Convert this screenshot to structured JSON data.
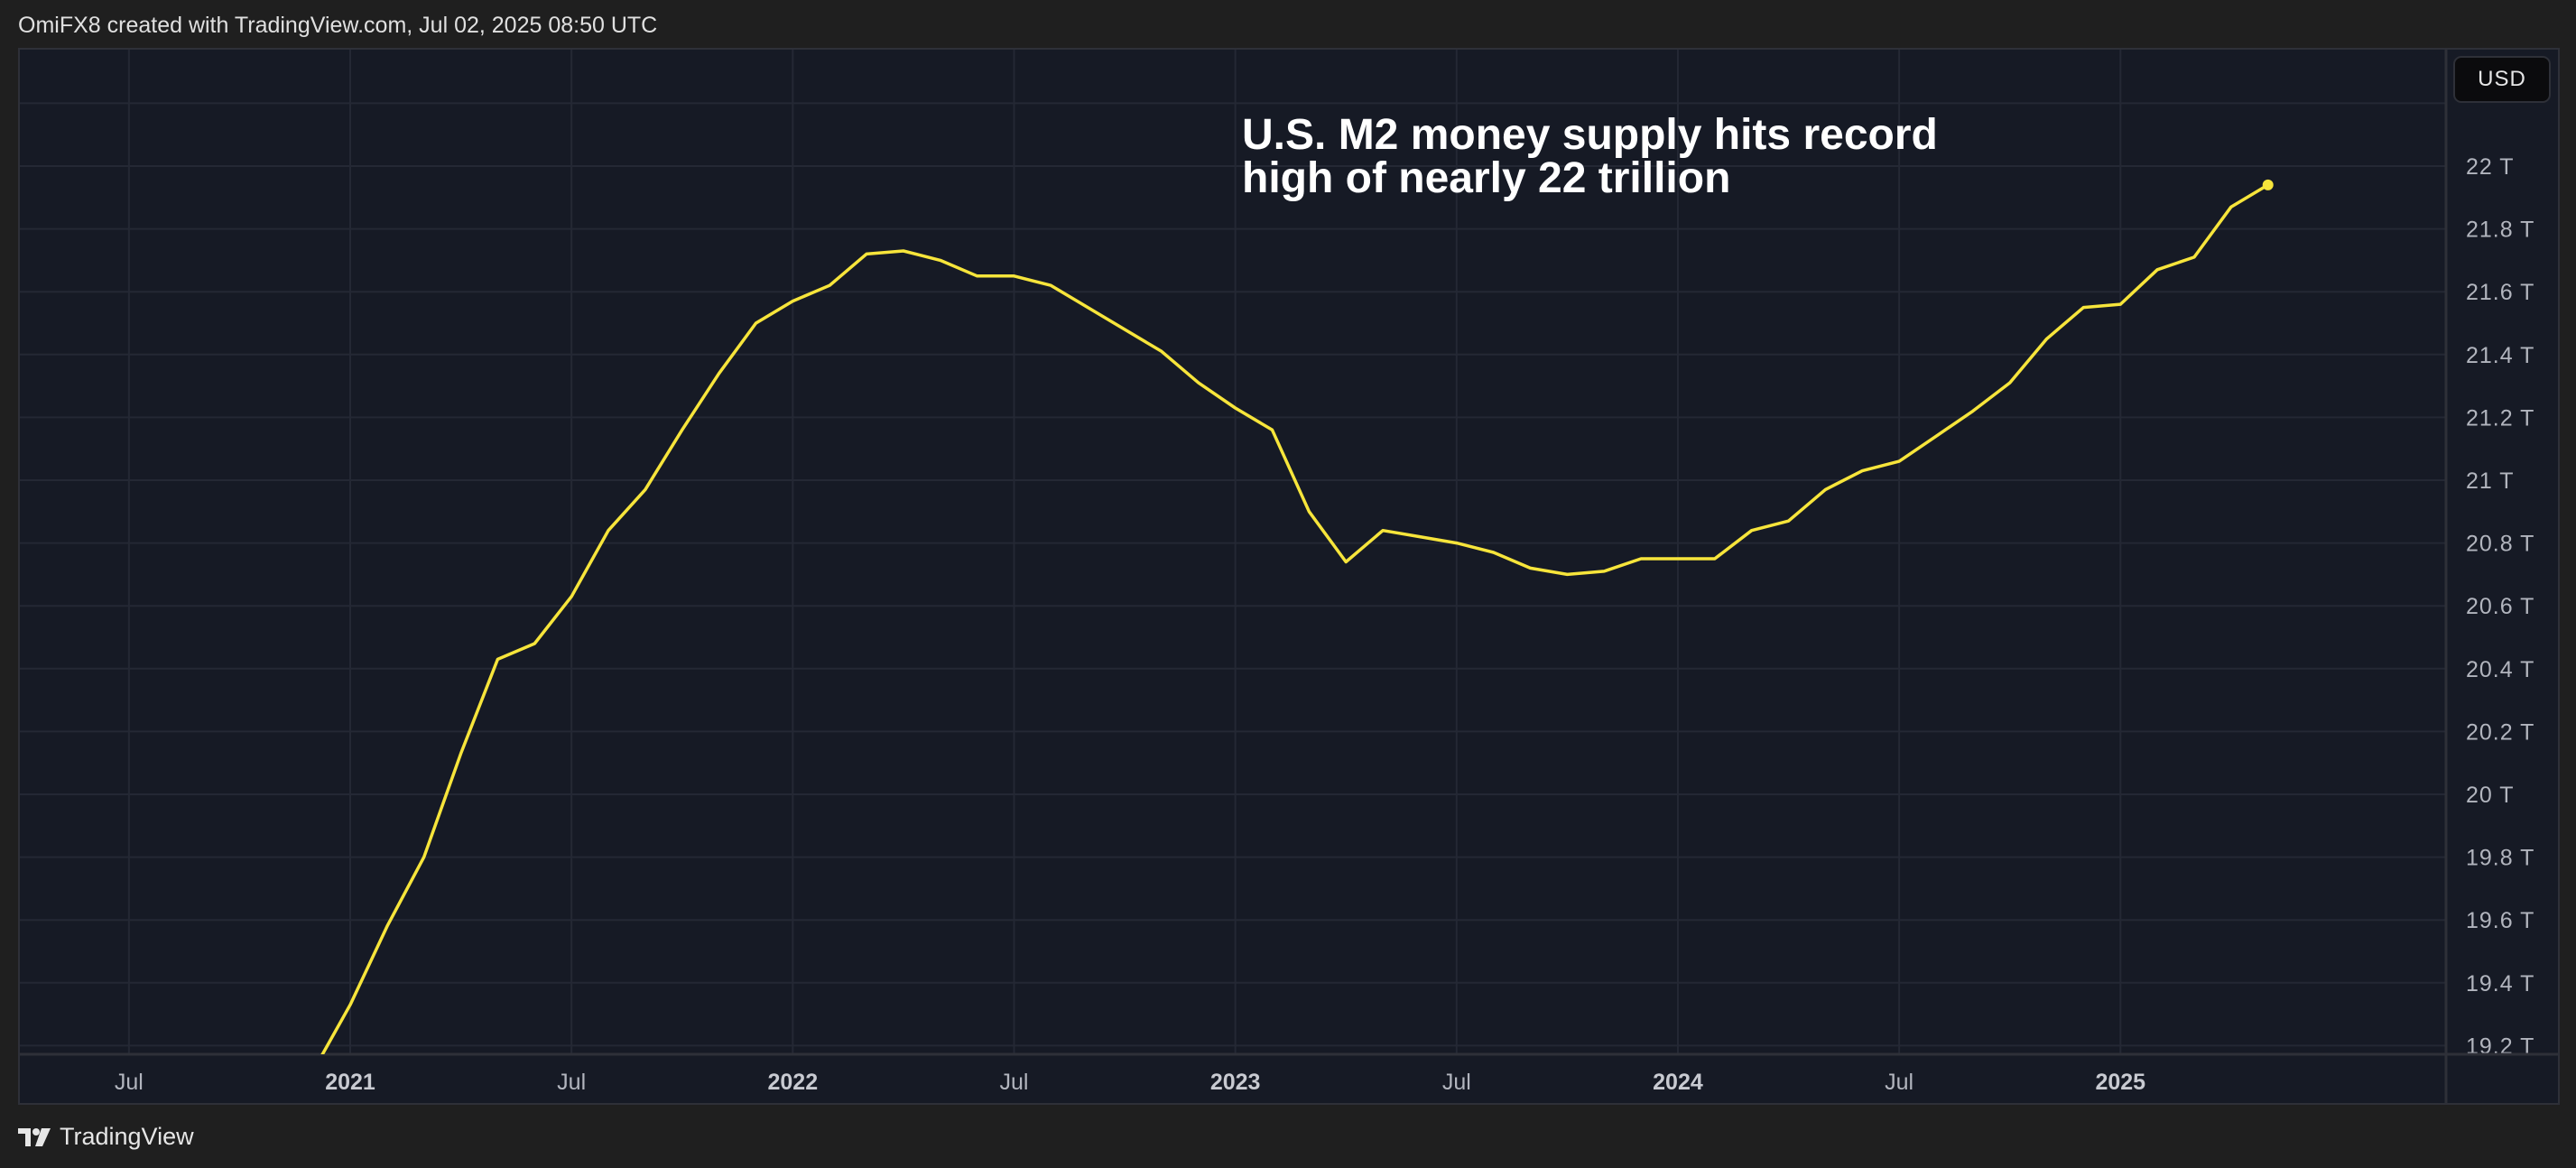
{
  "header": {
    "credit": "OmiFX8 created with TradingView.com, Jul 02, 2025 08:50 UTC"
  },
  "footer": {
    "brand": "TradingView"
  },
  "currency_button": "USD",
  "colors": {
    "line": "#f7e53b",
    "background": "#161a25",
    "grid": "#242834",
    "text": "#b2b5be"
  },
  "chart_data": {
    "type": "line",
    "annotation_line1": "U.S. M2 money supply hits record",
    "annotation_line2": "high of nearly 22 trillion",
    "ylim": [
      19.2,
      22.2
    ],
    "y_unit": "T",
    "y_ticks": [
      "22 T",
      "21.8 T",
      "21.6 T",
      "21.4 T",
      "21.2 T",
      "21 T",
      "20.8 T",
      "20.6 T",
      "20.4 T",
      "20.2 T",
      "20 T",
      "19.8 T",
      "19.6 T",
      "19.4 T",
      "19.2 T"
    ],
    "y_tick_values": [
      22,
      21.8,
      21.6,
      21.4,
      21.2,
      21,
      20.8,
      20.6,
      20.4,
      20.2,
      20,
      19.8,
      19.6,
      19.4,
      19.2
    ],
    "x_ticks": [
      {
        "label": "Jul",
        "date": "2020-07",
        "major": false
      },
      {
        "label": "2021",
        "date": "2021-01",
        "major": true
      },
      {
        "label": "Jul",
        "date": "2021-07",
        "major": false
      },
      {
        "label": "2022",
        "date": "2022-01",
        "major": true
      },
      {
        "label": "Jul",
        "date": "2022-07",
        "major": false
      },
      {
        "label": "2023",
        "date": "2023-01",
        "major": true
      },
      {
        "label": "Jul",
        "date": "2023-07",
        "major": false
      },
      {
        "label": "2024",
        "date": "2024-01",
        "major": true
      },
      {
        "label": "Jul",
        "date": "2024-07",
        "major": false
      },
      {
        "label": "2025",
        "date": "2025-01",
        "major": true
      }
    ],
    "grid": true,
    "x": [
      "2020-12",
      "2021-01",
      "2021-02",
      "2021-03",
      "2021-04",
      "2021-05",
      "2021-06",
      "2021-07",
      "2021-08",
      "2021-09",
      "2021-10",
      "2021-11",
      "2021-12",
      "2022-01",
      "2022-02",
      "2022-03",
      "2022-04",
      "2022-05",
      "2022-06",
      "2022-07",
      "2022-08",
      "2022-09",
      "2022-10",
      "2022-11",
      "2022-12",
      "2023-01",
      "2023-02",
      "2023-03",
      "2023-04",
      "2023-05",
      "2023-06",
      "2023-07",
      "2023-08",
      "2023-09",
      "2023-10",
      "2023-11",
      "2023-12",
      "2024-01",
      "2024-02",
      "2024-03",
      "2024-04",
      "2024-05",
      "2024-06",
      "2024-07",
      "2024-08",
      "2024-09",
      "2024-10",
      "2024-11",
      "2024-12",
      "2025-01",
      "2025-02",
      "2025-03",
      "2025-04",
      "2025-05"
    ],
    "values": [
      19.12,
      19.33,
      19.58,
      19.8,
      20.13,
      20.43,
      20.48,
      20.63,
      20.84,
      20.97,
      21.16,
      21.34,
      21.5,
      21.57,
      21.62,
      21.72,
      21.73,
      21.7,
      21.65,
      21.65,
      21.62,
      21.55,
      21.48,
      21.41,
      21.31,
      21.23,
      21.16,
      20.9,
      20.74,
      20.84,
      20.82,
      20.8,
      20.77,
      20.72,
      20.7,
      20.71,
      20.75,
      20.75,
      20.75,
      20.84,
      20.87,
      20.97,
      21.03,
      21.06,
      21.14,
      21.22,
      21.31,
      21.45,
      21.55,
      21.56,
      21.67,
      21.71,
      21.87,
      21.94
    ]
  }
}
